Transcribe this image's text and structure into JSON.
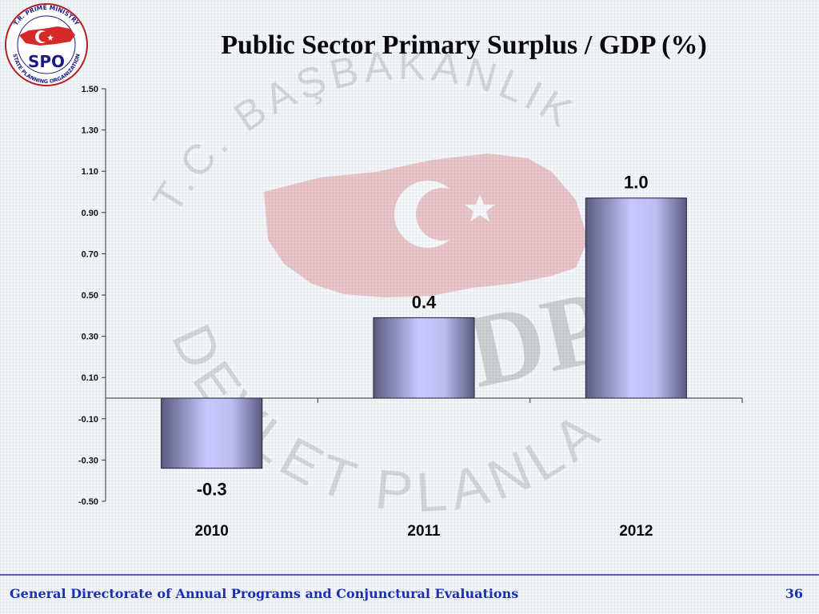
{
  "logo": {
    "text": "SPO",
    "ring_top": "T.R. PRIME MINISTRY",
    "ring_bottom": "STATE PLANNING ORGANIZATION"
  },
  "watermark": {
    "top_text": "T.C. BAŞBAKANLIK",
    "bottom_text": "DEVLET PLANLAMA",
    "big_letters": "DPT"
  },
  "chart_data": {
    "type": "bar",
    "title": "Public Sector Primary Surplus / GDP (%)",
    "categories": [
      "2010",
      "2011",
      "2012"
    ],
    "values": [
      -0.34,
      0.39,
      0.97
    ],
    "data_labels": [
      "-0.3",
      "0.4",
      "1.0"
    ],
    "yticks": [
      "1.50",
      "1.30",
      "1.10",
      "0.90",
      "0.70",
      "0.50",
      "0.30",
      "0.10",
      "-0.10",
      "-0.30",
      "-0.50"
    ],
    "ylim": [
      -0.5,
      1.5
    ],
    "xlabel": "",
    "ylabel": "",
    "grid": false,
    "bar_color_light": "#c6c6ff",
    "bar_color_dark": "#5a5a80"
  },
  "footer": {
    "text": "General Directorate of Annual Programs and Conjunctural Evaluations",
    "page": "36"
  }
}
